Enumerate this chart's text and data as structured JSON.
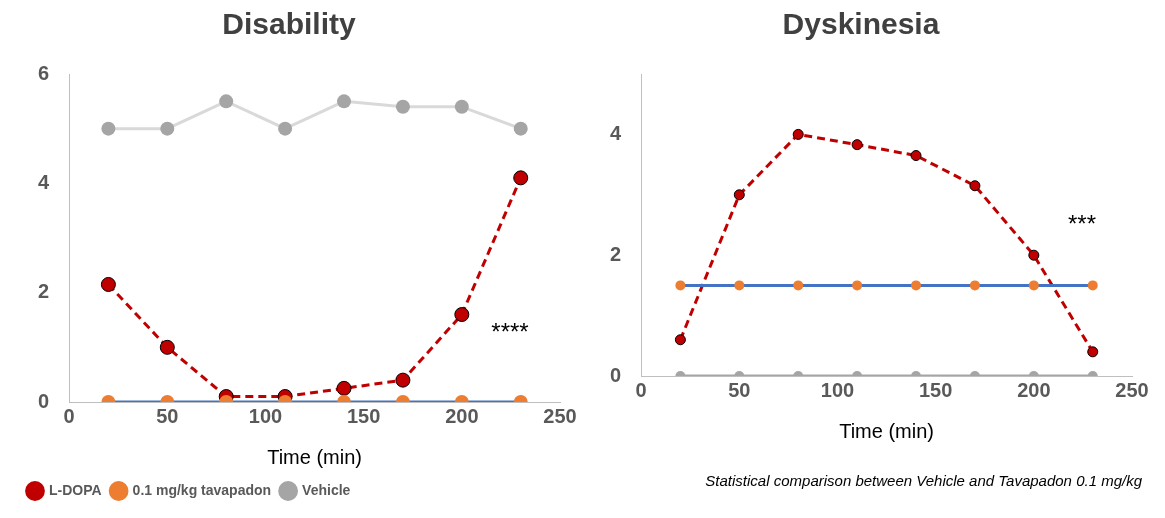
{
  "chart_data": [
    {
      "type": "line",
      "title": "Disability",
      "xlabel": "Time (min)",
      "x": [
        20,
        50,
        80,
        110,
        140,
        170,
        200,
        230
      ],
      "xlim": [
        0,
        250
      ],
      "xticks": [
        0,
        50,
        100,
        150,
        200,
        250
      ],
      "ylim": [
        0,
        6
      ],
      "yticks": [
        0,
        2,
        4,
        6
      ],
      "grid": false,
      "legend": "bottom left",
      "marker": "circle",
      "annotations": [
        "****"
      ],
      "series": [
        {
          "name": "L-DOPA",
          "color": "#c00000",
          "line_style": "dashed",
          "values": [
            2.15,
            1.0,
            0.1,
            0.1,
            0.25,
            0.4,
            1.6,
            4.1
          ]
        },
        {
          "name": "0.1 mg/kg tavapadon",
          "color": "#4472c4",
          "colors": [
            "#ed7d31",
            "#ed7d31",
            "#ed7d31",
            "#ed7d31",
            "#ed7d31",
            "#ed7d31",
            "#ed7d31",
            "#ed7d31"
          ],
          "values": [
            0,
            0,
            0,
            0,
            0,
            0,
            0,
            0
          ]
        },
        {
          "name": "Vehicle",
          "color": "#d9d9d9",
          "colors": [
            "#a5a5a5",
            "#a5a5a5",
            "#a5a5a5",
            "#a5a5a5",
            "#a5a5a5",
            "#a5a5a5",
            "#a5a5a5",
            "#a5a5a5"
          ],
          "values": [
            5,
            5,
            5.5,
            5,
            5.5,
            5.4,
            5.4,
            5
          ]
        }
      ]
    },
    {
      "type": "line",
      "title": "Dyskinesia",
      "xlabel": "Time (min)",
      "x": [
        20,
        50,
        80,
        110,
        140,
        170,
        200,
        230
      ],
      "xlim": [
        0,
        250
      ],
      "xticks": [
        0,
        50,
        100,
        150,
        200,
        250
      ],
      "ylim": [
        0,
        5
      ],
      "yticks": [
        0,
        2,
        4
      ],
      "grid": false,
      "marker": "circle",
      "annotations": [
        "***",
        "Statistical comparison between Vehicle and Tavapadon 0.1 mg/kg"
      ],
      "series": [
        {
          "color": "#c00000",
          "line_style": "dashed",
          "values": [
            0.6,
            3.0,
            4.0,
            3.83,
            3.65,
            3.15,
            2.0,
            0.4
          ]
        },
        {
          "color": "#4472c4",
          "colors": [
            "#ed7d31",
            "#ed7d31",
            "#ed7d31",
            "#ed7d31",
            "#ed7d31",
            "#ed7d31",
            "#ed7d31",
            "#ed7d31"
          ],
          "values": [
            1.5,
            1.5,
            1.5,
            1.5,
            1.5,
            1.5,
            1.5,
            1.5
          ]
        },
        {
          "color": "#a5a5a5",
          "values": [
            0,
            0,
            0,
            0,
            0,
            0,
            0,
            0
          ]
        }
      ]
    }
  ]
}
